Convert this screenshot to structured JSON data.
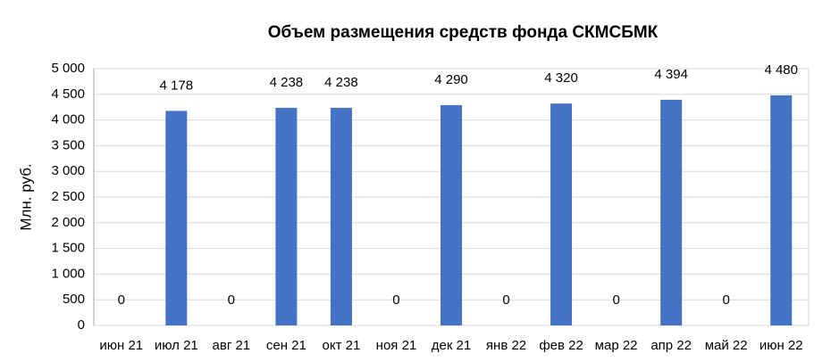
{
  "chart_data": {
    "type": "bar",
    "title": "Объем размещения средств фонда СКМСБМК",
    "y_label": "Млн. руб.",
    "categories": [
      "июн 21",
      "июл 21",
      "авг 21",
      "сен 21",
      "окт 21",
      "ноя 21",
      "дек 21",
      "янв 22",
      "фев 22",
      "мар 22",
      "апр 22",
      "май 22",
      "июн 22"
    ],
    "values": [
      0,
      4178,
      0,
      4238,
      4238,
      0,
      4290,
      0,
      4320,
      0,
      4394,
      0,
      4480
    ],
    "value_labels": [
      "0",
      "4 178",
      "0",
      "4 238",
      "4 238",
      "0",
      "4 290",
      "0",
      "4 320",
      "0",
      "4 394",
      "0",
      "4 480"
    ],
    "color": "#4472c4",
    "ylim": [
      0,
      5000
    ],
    "yticks": [
      0,
      500,
      {
        "value": 1000,
        "label": "1 000"
      },
      {
        "value": 1500,
        "label": "1 500"
      },
      {
        "value": 2000,
        "label": "2 000"
      },
      {
        "value": 2500,
        "label": "2 500"
      },
      {
        "value": 3000,
        "label": "3 000"
      },
      {
        "value": 3500,
        "label": "3 500"
      },
      {
        "value": 4000,
        "label": "4 000"
      },
      {
        "value": 4500,
        "label": "4 500"
      },
      {
        "value": 5000,
        "label": "5 000"
      }
    ],
    "grid": true
  }
}
